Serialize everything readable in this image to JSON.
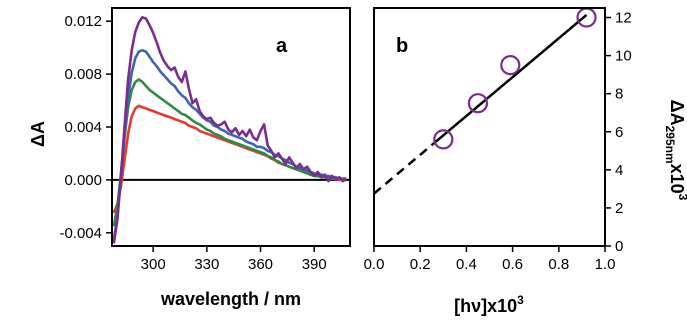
{
  "chart_data": [
    {
      "type": "line",
      "panel_label": "a",
      "xlabel": "wavelength / nm",
      "ylabel": "ΔA",
      "xlim": [
        277,
        410
      ],
      "ylim": [
        -0.005,
        0.013
      ],
      "xticks": [
        300,
        330,
        360,
        390
      ],
      "yticks": [
        -0.004,
        0.0,
        0.004,
        0.008,
        0.012
      ],
      "ytick_labels": [
        "-0.004",
        "0.000",
        "0.004",
        "0.008",
        "0.012"
      ],
      "baseline": 0,
      "grid": false,
      "x": [
        278,
        280,
        282,
        284,
        286,
        288,
        290,
        292,
        294,
        296,
        298,
        300,
        302,
        304,
        306,
        308,
        310,
        312,
        314,
        316,
        318,
        320,
        322,
        324,
        326,
        328,
        330,
        332,
        334,
        336,
        338,
        340,
        342,
        344,
        346,
        348,
        350,
        352,
        354,
        356,
        358,
        360,
        362,
        364,
        366,
        368,
        370,
        372,
        374,
        376,
        378,
        380,
        382,
        384,
        386,
        388,
        390,
        392,
        394,
        396,
        398,
        400,
        402,
        404,
        406,
        408
      ],
      "series": [
        {
          "color": "#7b2d8e",
          "values": [
            -0.0048,
            -0.003,
            0.0002,
            0.004,
            0.0076,
            0.0098,
            0.0112,
            0.0119,
            0.0123,
            0.0122,
            0.0117,
            0.0111,
            0.0104,
            0.0096,
            0.009,
            0.0086,
            0.0083,
            0.0085,
            0.0078,
            0.0074,
            0.0082,
            0.0069,
            0.0058,
            0.0061,
            0.0052,
            0.0048,
            0.0046,
            0.0047,
            0.0043,
            0.0041,
            0.0042,
            0.0044,
            0.0038,
            0.0036,
            0.0039,
            0.0034,
            0.0037,
            0.0033,
            0.0038,
            0.0032,
            0.003,
            0.0037,
            0.0042,
            0.0026,
            0.0022,
            0.0017,
            0.002,
            0.0016,
            0.0012,
            0.0017,
            0.0013,
            0.0009,
            0.0012,
            0.0008,
            0.001,
            0.0006,
            0.0003,
            0.0006,
            0.0002,
            0.0004,
            -0.0001,
            0.0003,
            0.0,
            0.0002,
            -0.0001,
            0.0001
          ]
        },
        {
          "color": "#3b64b4",
          "values": [
            -0.0045,
            -0.0028,
            0.0002,
            0.0035,
            0.0062,
            0.0081,
            0.0092,
            0.0097,
            0.0098,
            0.0097,
            0.0093,
            0.0089,
            0.0086,
            0.0082,
            0.0079,
            0.0076,
            0.0073,
            0.0071,
            0.0067,
            0.0064,
            0.0062,
            0.0058,
            0.0055,
            0.0053,
            0.005,
            0.0047,
            0.0045,
            0.0044,
            0.0041,
            0.004,
            0.0038,
            0.0037,
            0.0035,
            0.0034,
            0.0033,
            0.0032,
            0.0031,
            0.0029,
            0.0028,
            0.0027,
            0.0025,
            0.0025,
            0.0024,
            0.0022,
            0.0021,
            0.0019,
            0.0018,
            0.0016,
            0.0015,
            0.0013,
            0.0012,
            0.001,
            0.0009,
            0.0008,
            0.0007,
            0.0006,
            0.0005,
            0.0004,
            0.0004,
            0.0003,
            0.0003,
            0.0002,
            0.0002,
            0.0001,
            0.0001,
            0.0001
          ]
        },
        {
          "color": "#2e8b43",
          "values": [
            -0.0035,
            -0.002,
            0.0005,
            0.0032,
            0.0055,
            0.0068,
            0.0074,
            0.0076,
            0.0074,
            0.0071,
            0.0068,
            0.0066,
            0.0064,
            0.0062,
            0.006,
            0.0058,
            0.0056,
            0.0054,
            0.0052,
            0.005,
            0.0049,
            0.0047,
            0.0045,
            0.0043,
            0.0042,
            0.004,
            0.0038,
            0.0037,
            0.0035,
            0.0034,
            0.0033,
            0.0031,
            0.003,
            0.0029,
            0.0028,
            0.0027,
            0.0026,
            0.0025,
            0.0024,
            0.0023,
            0.0022,
            0.0021,
            0.002,
            0.0018,
            0.0017,
            0.0015,
            0.0014,
            0.0012,
            0.0011,
            0.001,
            0.0009,
            0.0008,
            0.0007,
            0.0006,
            0.0005,
            0.0004,
            0.0003,
            0.0003,
            0.0002,
            0.0002,
            0.0002,
            0.0001,
            0.0001,
            0.0001,
            0.0,
            0.0
          ]
        },
        {
          "color": "#e8392f",
          "values": [
            -0.0025,
            -0.0018,
            -0.0005,
            0.0015,
            0.0035,
            0.0048,
            0.0054,
            0.0056,
            0.0055,
            0.0054,
            0.0053,
            0.0052,
            0.0051,
            0.005,
            0.0049,
            0.0048,
            0.0047,
            0.0046,
            0.0045,
            0.0044,
            0.0043,
            0.0041,
            0.004,
            0.0039,
            0.0037,
            0.0036,
            0.0035,
            0.0034,
            0.0033,
            0.0032,
            0.0031,
            0.003,
            0.0029,
            0.0028,
            0.0027,
            0.0026,
            0.0025,
            0.0024,
            0.0023,
            0.0022,
            0.0021,
            0.002,
            0.0019,
            0.0018,
            0.0016,
            0.0015,
            0.0013,
            0.0012,
            0.0011,
            0.001,
            0.0009,
            0.0008,
            0.0007,
            0.0006,
            0.0005,
            0.0004,
            0.0003,
            0.0003,
            0.0002,
            0.0002,
            0.0001,
            0.0001,
            0.0001,
            0.0,
            0.0,
            0.0
          ]
        }
      ]
    },
    {
      "type": "scatter",
      "panel_label": "b",
      "xlabel": "[hν]x10",
      "xlabel_sup": "3",
      "ylabel": "ΔA",
      "ylabel_sub": "295nm",
      "ylabel_suffix": "x10",
      "ylabel_sup": "3",
      "xlim": [
        0.0,
        1.0
      ],
      "ylim": [
        0,
        12.5
      ],
      "xticks": [
        0.0,
        0.2,
        0.4,
        0.6,
        0.8,
        1.0
      ],
      "xtick_labels": [
        "0.0",
        "0.2",
        "0.4",
        "0.6",
        "0.8",
        "1.0"
      ],
      "yticks": [
        0,
        2,
        4,
        6,
        8,
        10,
        12
      ],
      "y_axis_side": "right",
      "grid": false,
      "points": [
        {
          "x": 0.3,
          "y": 5.6
        },
        {
          "x": 0.45,
          "y": 7.5
        },
        {
          "x": 0.59,
          "y": 9.5
        },
        {
          "x": 0.92,
          "y": 12.0
        }
      ],
      "marker_color": "#7b2d8e",
      "fit_line": {
        "slope": 10.2,
        "intercept": 2.75,
        "dashed_x": [
          0.0,
          0.25
        ],
        "solid_x": [
          0.25,
          0.92
        ],
        "color": "#000000"
      }
    }
  ]
}
